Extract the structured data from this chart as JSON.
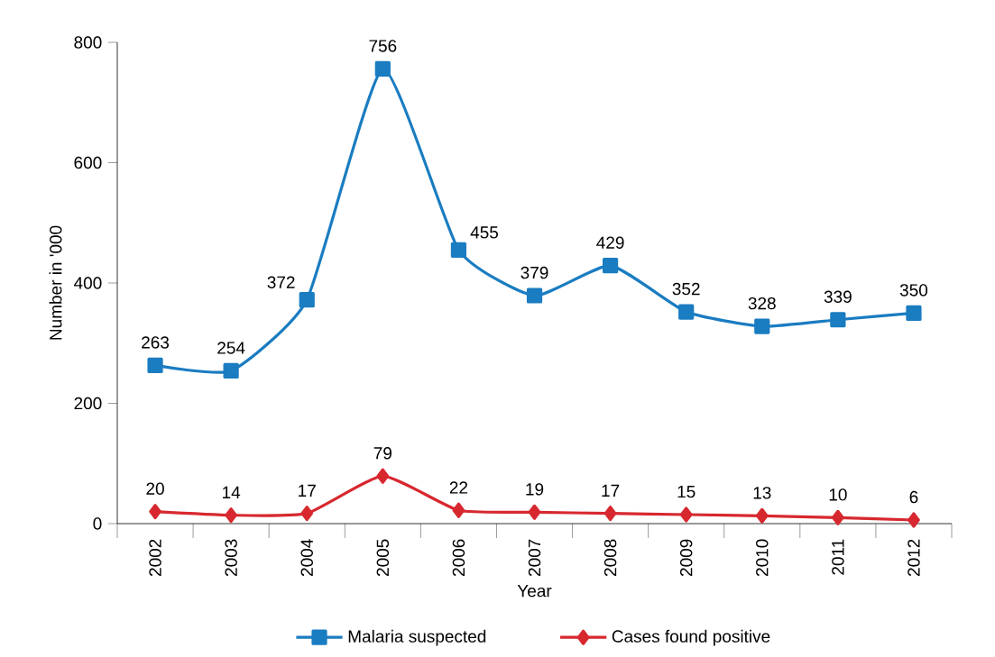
{
  "chart_data": {
    "type": "line",
    "xlabel": "Year",
    "ylabel": "Number in '000",
    "categories": [
      "2002",
      "2003",
      "2004",
      "2005",
      "2006",
      "2007",
      "2008",
      "2009",
      "2010",
      "2011",
      "2012"
    ],
    "series": [
      {
        "name": "Malaria suspected",
        "color": "#1a7cc1",
        "marker": "square",
        "values": [
          263,
          254,
          372,
          756,
          455,
          379,
          429,
          352,
          328,
          339,
          350
        ]
      },
      {
        "name": "Cases found positive",
        "color": "#d7282f",
        "marker": "diamond",
        "values": [
          20,
          14,
          17,
          79,
          22,
          19,
          17,
          15,
          13,
          10,
          6
        ]
      }
    ],
    "ylim": [
      0,
      800
    ],
    "yticks": [
      0,
      200,
      400,
      600,
      800
    ],
    "data_labels": true,
    "legend": "bottom",
    "grid": false,
    "line_style": "solid"
  }
}
